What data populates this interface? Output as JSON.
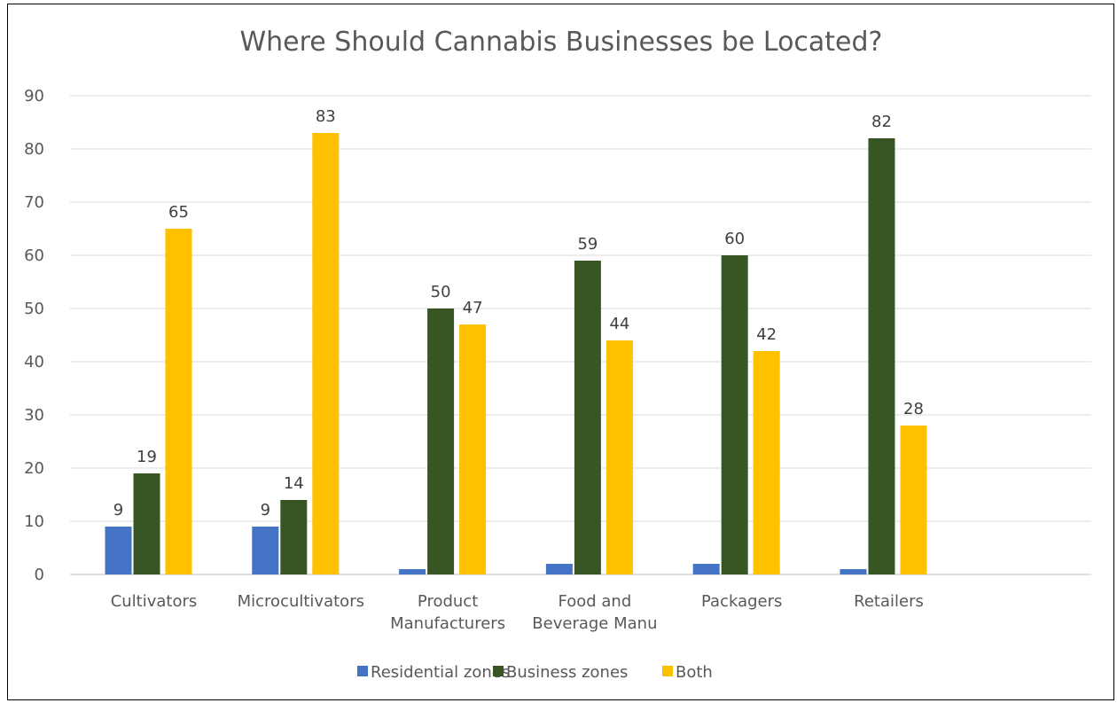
{
  "chart_data": {
    "type": "bar",
    "title": "Where Should Cannabis Businesses be Located?",
    "xlabel": "",
    "ylabel": "",
    "ylim": [
      0,
      90
    ],
    "yticks": [
      "0",
      "10",
      "20",
      "30",
      "40",
      "50",
      "60",
      "70",
      "80",
      "90"
    ],
    "categories": [
      [
        "Cultivators"
      ],
      [
        "Microcultivators"
      ],
      [
        "Product",
        "Manufacturers"
      ],
      [
        "Food and",
        "Beverage Manu"
      ],
      [
        "Packagers"
      ],
      [
        "Retailers"
      ]
    ],
    "series": [
      {
        "name": "Residential zones",
        "color": "#4472C4",
        "values": [
          9,
          9,
          1,
          2,
          2,
          1
        ],
        "labels": [
          "9",
          "9",
          "",
          "",
          "",
          ""
        ]
      },
      {
        "name": "Business zones",
        "color": "#375623",
        "values": [
          19,
          14,
          50,
          59,
          60,
          82
        ],
        "labels": [
          "19",
          "14",
          "50",
          "59",
          "60",
          "82"
        ]
      },
      {
        "name": "Both",
        "color": "#FFC000",
        "values": [
          65,
          83,
          47,
          44,
          42,
          28
        ],
        "labels": [
          "65",
          "83",
          "47",
          "44",
          "42",
          "28"
        ]
      }
    ],
    "grid": true,
    "legend": "bottom"
  }
}
